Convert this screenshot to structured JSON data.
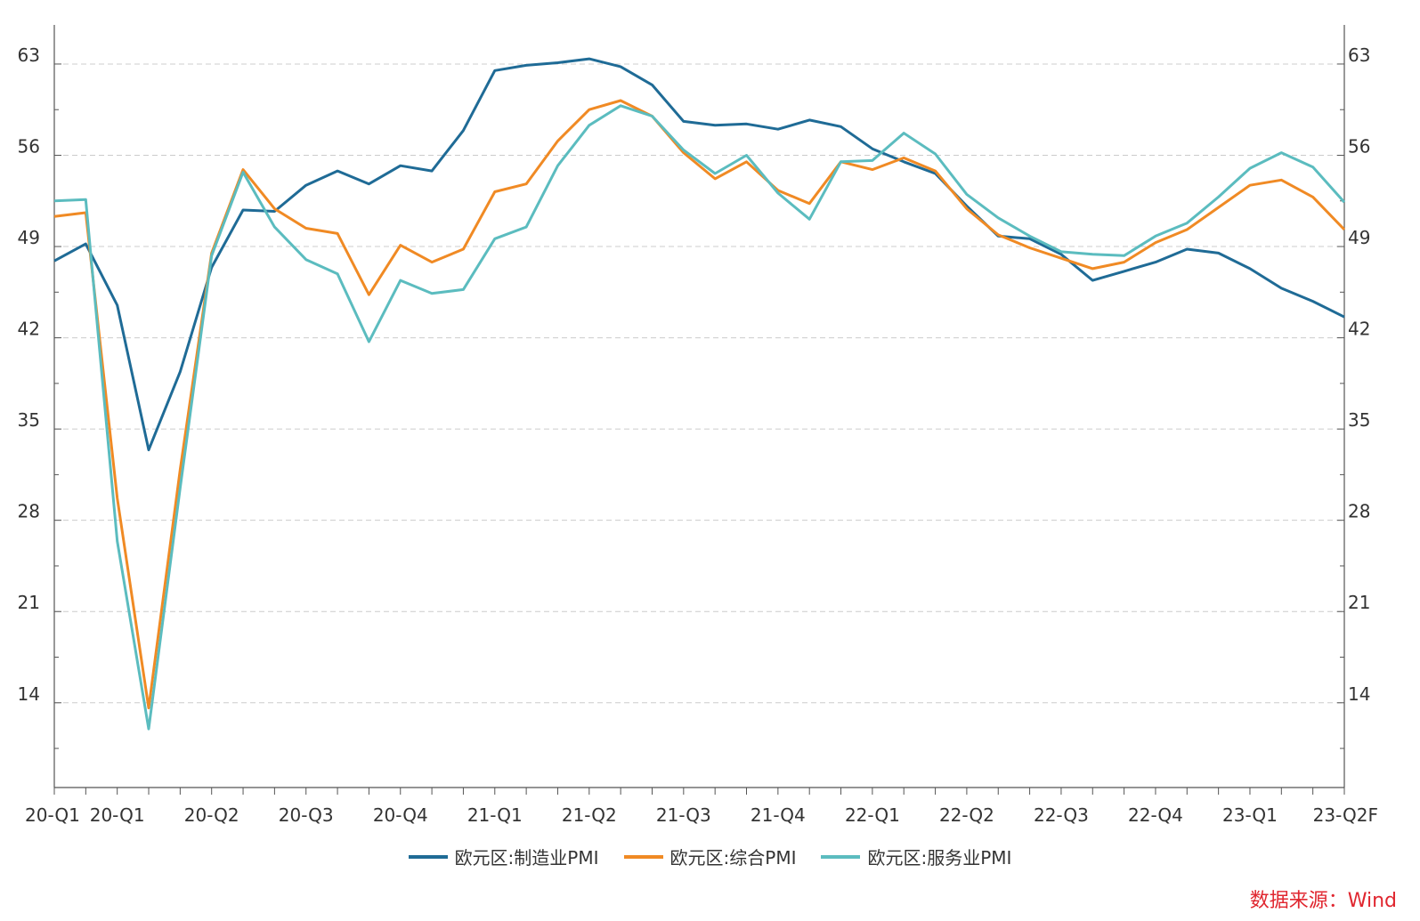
{
  "chart_data": {
    "type": "line",
    "title": "",
    "xlabel": "",
    "ylabel": "",
    "ylim": [
      7.5,
      66
    ],
    "y_ticks": [
      14,
      21,
      28,
      35,
      42,
      49,
      56,
      63
    ],
    "x_tick_labels": [
      "20-Q1",
      "20-Q1",
      "20-Q2",
      "20-Q3",
      "20-Q4",
      "21-Q1",
      "21-Q2",
      "21-Q3",
      "21-Q4",
      "22-Q1",
      "22-Q2",
      "22-Q3",
      "22-Q4",
      "23-Q1",
      "23-Q2F"
    ],
    "x": [
      1,
      2,
      3,
      4,
      5,
      6,
      7,
      8,
      9,
      10,
      11,
      12,
      13,
      14,
      15,
      16,
      17,
      18,
      19,
      20,
      21,
      22,
      23,
      24,
      25,
      26,
      27,
      28,
      29,
      30,
      31,
      32,
      33,
      34,
      35,
      36,
      37,
      38,
      39,
      40,
      41,
      42
    ],
    "series": [
      {
        "name": "欧元区:制造业PMI",
        "color": "#1f6b96",
        "values": [
          47.9,
          49.2,
          44.5,
          33.4,
          39.4,
          47.4,
          51.8,
          51.7,
          53.7,
          54.8,
          53.8,
          55.2,
          54.8,
          57.9,
          62.5,
          62.9,
          63.1,
          63.4,
          62.8,
          61.4,
          58.6,
          58.3,
          58.4,
          58.0,
          58.7,
          58.2,
          56.5,
          55.5,
          54.6,
          52.1,
          49.8,
          49.6,
          48.4,
          46.4,
          47.1,
          47.8,
          48.8,
          48.5,
          47.3,
          45.8,
          44.8,
          43.6
        ]
      },
      {
        "name": "欧元区:综合PMI",
        "color": "#f08a24",
        "values": [
          51.3,
          51.6,
          29.7,
          13.6,
          31.9,
          48.5,
          54.9,
          51.9,
          50.4,
          50.0,
          45.3,
          49.1,
          47.8,
          48.8,
          53.2,
          53.8,
          57.1,
          59.5,
          60.2,
          59.0,
          56.2,
          54.2,
          55.5,
          53.3,
          52.3,
          55.5,
          54.9,
          55.8,
          54.8,
          51.9,
          49.9,
          48.9,
          48.1,
          47.3,
          47.8,
          49.3,
          50.3,
          52.0,
          53.7,
          54.1,
          52.8,
          50.3
        ]
      },
      {
        "name": "欧元区:服务业PMI",
        "color": "#5bbcbf",
        "values": [
          52.5,
          52.6,
          26.4,
          12.0,
          30.5,
          48.3,
          54.7,
          50.5,
          48.0,
          46.9,
          41.7,
          46.4,
          45.4,
          45.7,
          49.6,
          50.5,
          55.2,
          58.3,
          59.8,
          59.0,
          56.4,
          54.6,
          56.0,
          53.1,
          51.1,
          55.5,
          55.6,
          57.7,
          56.1,
          53.0,
          51.2,
          49.8,
          48.6,
          48.4,
          48.3,
          49.8,
          50.8,
          52.8,
          55.0,
          56.2,
          55.1,
          52.4
        ]
      }
    ],
    "grid": true,
    "legend_position": "bottom-center"
  },
  "legend": [
    {
      "label": "欧元区:制造业PMI",
      "color": "#1f6b96"
    },
    {
      "label": "欧元区:综合PMI",
      "color": "#f08a24"
    },
    {
      "label": "欧元区:服务业PMI",
      "color": "#5bbcbf"
    }
  ],
  "source_text": "数据来源：Wind"
}
